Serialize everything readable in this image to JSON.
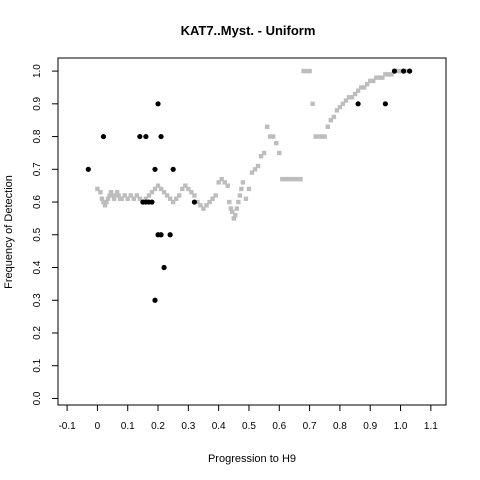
{
  "chart_data": {
    "type": "scatter",
    "title": "KAT7..Myst. - Uniform",
    "xlabel": "Progression to H9",
    "ylabel": "Frequency of Detection",
    "xlim": [
      -0.13,
      1.15
    ],
    "ylim": [
      -0.02,
      1.04
    ],
    "x_ticks": [
      "-0.1",
      "0",
      "0.1",
      "0.2",
      "0.3",
      "0.4",
      "0.5",
      "0.6",
      "0.7",
      "0.8",
      "0.9",
      "1.0",
      "1.1"
    ],
    "y_ticks": [
      "0.0",
      "0.1",
      "0.2",
      "0.3",
      "0.4",
      "0.5",
      "0.6",
      "0.7",
      "0.8",
      "0.9",
      "1.0"
    ],
    "grid": false,
    "colors": {
      "smooth": "#bdbdbd",
      "points": "#000000",
      "frame": "#000000"
    },
    "series": [
      {
        "role": "smoothed-curve",
        "color": "#bdbdbd",
        "points": [
          [
            0.0,
            0.64
          ],
          [
            0.01,
            0.63
          ],
          [
            0.015,
            0.61
          ],
          [
            0.02,
            0.6
          ],
          [
            0.025,
            0.59
          ],
          [
            0.03,
            0.6
          ],
          [
            0.035,
            0.61
          ],
          [
            0.04,
            0.62
          ],
          [
            0.045,
            0.63
          ],
          [
            0.05,
            0.62
          ],
          [
            0.055,
            0.61
          ],
          [
            0.06,
            0.62
          ],
          [
            0.065,
            0.63
          ],
          [
            0.07,
            0.62
          ],
          [
            0.075,
            0.61
          ],
          [
            0.08,
            0.61
          ],
          [
            0.09,
            0.62
          ],
          [
            0.1,
            0.61
          ],
          [
            0.11,
            0.62
          ],
          [
            0.12,
            0.61
          ],
          [
            0.13,
            0.62
          ],
          [
            0.14,
            0.61
          ],
          [
            0.15,
            0.6
          ],
          [
            0.16,
            0.61
          ],
          [
            0.17,
            0.62
          ],
          [
            0.18,
            0.63
          ],
          [
            0.19,
            0.64
          ],
          [
            0.2,
            0.65
          ],
          [
            0.21,
            0.64
          ],
          [
            0.22,
            0.63
          ],
          [
            0.23,
            0.62
          ],
          [
            0.24,
            0.61
          ],
          [
            0.25,
            0.6
          ],
          [
            0.26,
            0.61
          ],
          [
            0.27,
            0.62
          ],
          [
            0.28,
            0.64
          ],
          [
            0.29,
            0.65
          ],
          [
            0.3,
            0.64
          ],
          [
            0.31,
            0.63
          ],
          [
            0.32,
            0.62
          ],
          [
            0.33,
            0.6
          ],
          [
            0.34,
            0.59
          ],
          [
            0.35,
            0.58
          ],
          [
            0.36,
            0.59
          ],
          [
            0.37,
            0.6
          ],
          [
            0.38,
            0.61
          ],
          [
            0.39,
            0.62
          ],
          [
            0.4,
            0.66
          ],
          [
            0.41,
            0.67
          ],
          [
            0.42,
            0.66
          ],
          [
            0.43,
            0.65
          ],
          [
            0.435,
            0.6
          ],
          [
            0.44,
            0.58
          ],
          [
            0.445,
            0.57
          ],
          [
            0.45,
            0.55
          ],
          [
            0.455,
            0.56
          ],
          [
            0.46,
            0.58
          ],
          [
            0.465,
            0.6
          ],
          [
            0.47,
            0.62
          ],
          [
            0.475,
            0.64
          ],
          [
            0.48,
            0.66
          ],
          [
            0.49,
            0.61
          ],
          [
            0.5,
            0.64
          ],
          [
            0.51,
            0.69
          ],
          [
            0.52,
            0.7
          ],
          [
            0.53,
            0.71
          ],
          [
            0.54,
            0.74
          ],
          [
            0.55,
            0.75
          ],
          [
            0.56,
            0.83
          ],
          [
            0.57,
            0.8
          ],
          [
            0.58,
            0.8
          ],
          [
            0.59,
            0.78
          ],
          [
            0.6,
            0.75
          ],
          [
            0.61,
            0.67
          ],
          [
            0.62,
            0.67
          ],
          [
            0.63,
            0.67
          ],
          [
            0.64,
            0.67
          ],
          [
            0.65,
            0.67
          ],
          [
            0.66,
            0.67
          ],
          [
            0.67,
            0.67
          ],
          [
            0.68,
            1.0
          ],
          [
            0.69,
            1.0
          ],
          [
            0.7,
            1.0
          ],
          [
            0.71,
            0.9
          ],
          [
            0.72,
            0.8
          ],
          [
            0.73,
            0.8
          ],
          [
            0.74,
            0.8
          ],
          [
            0.75,
            0.8
          ],
          [
            0.76,
            0.83
          ],
          [
            0.77,
            0.85
          ],
          [
            0.78,
            0.86
          ],
          [
            0.79,
            0.88
          ],
          [
            0.8,
            0.89
          ],
          [
            0.81,
            0.9
          ],
          [
            0.82,
            0.91
          ],
          [
            0.83,
            0.92
          ],
          [
            0.84,
            0.92
          ],
          [
            0.85,
            0.93
          ],
          [
            0.86,
            0.94
          ],
          [
            0.87,
            0.95
          ],
          [
            0.88,
            0.95
          ],
          [
            0.89,
            0.96
          ],
          [
            0.9,
            0.97
          ],
          [
            0.91,
            0.97
          ],
          [
            0.92,
            0.98
          ],
          [
            0.93,
            0.98
          ],
          [
            0.94,
            0.98
          ],
          [
            0.95,
            0.99
          ],
          [
            0.96,
            0.99
          ],
          [
            0.97,
            0.99
          ],
          [
            0.98,
            1.0
          ],
          [
            0.99,
            1.0
          ],
          [
            1.0,
            1.0
          ],
          [
            1.01,
            1.0
          ],
          [
            1.02,
            1.0
          ]
        ]
      },
      {
        "role": "observations",
        "color": "#000000",
        "points": [
          [
            -0.03,
            0.7
          ],
          [
            0.02,
            0.8
          ],
          [
            0.14,
            0.8
          ],
          [
            0.16,
            0.8
          ],
          [
            0.15,
            0.6
          ],
          [
            0.16,
            0.6
          ],
          [
            0.17,
            0.6
          ],
          [
            0.18,
            0.6
          ],
          [
            0.19,
            0.7
          ],
          [
            0.2,
            0.9
          ],
          [
            0.21,
            0.8
          ],
          [
            0.2,
            0.5
          ],
          [
            0.21,
            0.5
          ],
          [
            0.24,
            0.5
          ],
          [
            0.22,
            0.4
          ],
          [
            0.19,
            0.3
          ],
          [
            0.25,
            0.7
          ],
          [
            0.32,
            0.6
          ],
          [
            0.86,
            0.9
          ],
          [
            0.95,
            0.9
          ],
          [
            0.98,
            1.0
          ],
          [
            1.01,
            1.0
          ],
          [
            1.03,
            1.0
          ]
        ]
      }
    ]
  }
}
